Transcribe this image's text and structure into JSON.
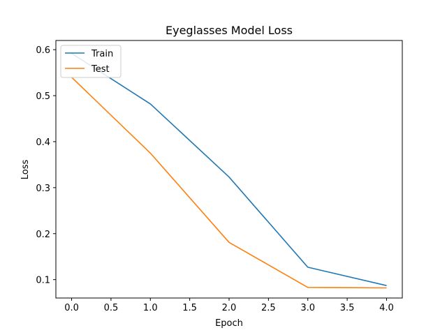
{
  "chart_data": {
    "type": "line",
    "title": "Eyeglasses Model Loss",
    "xlabel": "Epoch",
    "ylabel": "Loss",
    "xlim": [
      -0.2,
      4.2
    ],
    "ylim": [
      0.06,
      0.62
    ],
    "xticks": [
      0.0,
      0.5,
      1.0,
      1.5,
      2.0,
      2.5,
      3.0,
      3.5,
      4.0
    ],
    "xtick_labels": [
      "0.0",
      "0.5",
      "1.0",
      "1.5",
      "2.0",
      "2.5",
      "3.0",
      "3.5",
      "4.0"
    ],
    "yticks": [
      0.1,
      0.2,
      0.3,
      0.4,
      0.5,
      0.6
    ],
    "ytick_labels": [
      "0.1",
      "0.2",
      "0.3",
      "0.4",
      "0.5",
      "0.6"
    ],
    "grid": false,
    "legend_position": "top-left",
    "x": [
      0,
      1,
      2,
      3,
      4
    ],
    "series": [
      {
        "name": "Train",
        "color": "#1f77b4",
        "values": [
          0.592,
          0.482,
          0.323,
          0.127,
          0.087
        ]
      },
      {
        "name": "Test",
        "color": "#ff7f0e",
        "values": [
          0.54,
          0.375,
          0.181,
          0.083,
          0.082
        ]
      }
    ]
  }
}
